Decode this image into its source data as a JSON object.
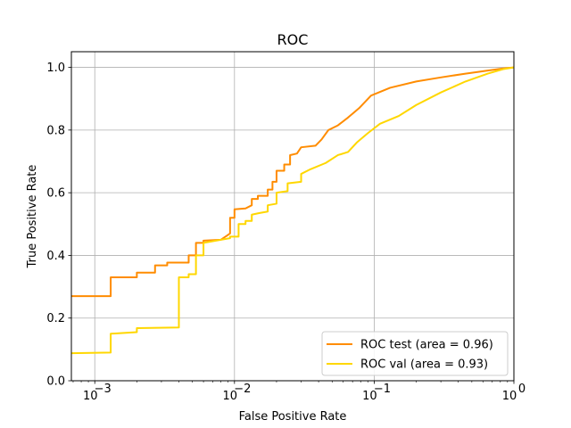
{
  "chart_data": {
    "type": "line",
    "title": "ROC",
    "xlabel": "False Positive Rate",
    "ylabel": "True Positive Rate",
    "xscale": "log",
    "xlim": [
      0.00068,
      1.0
    ],
    "ylim": [
      0.0,
      1.05
    ],
    "x_ticks": [
      {
        "value": 0.001,
        "base": "10",
        "exp": "−3"
      },
      {
        "value": 0.01,
        "base": "10",
        "exp": "−2"
      },
      {
        "value": 0.1,
        "base": "10",
        "exp": "−1"
      },
      {
        "value": 1.0,
        "base": "10",
        "exp": "0"
      }
    ],
    "y_ticks": [
      {
        "value": 0.0,
        "label": "0.0"
      },
      {
        "value": 0.2,
        "label": "0.2"
      },
      {
        "value": 0.4,
        "label": "0.4"
      },
      {
        "value": 0.6,
        "label": "0.6"
      },
      {
        "value": 0.8,
        "label": "0.8"
      },
      {
        "value": 1.0,
        "label": "1.0"
      }
    ],
    "grid": true,
    "legend_position": "bottom-right",
    "series": [
      {
        "name": "ROC test (area = 0.96)",
        "color": "#FF8C00",
        "points": [
          [
            0.00068,
            0.27
          ],
          [
            0.0013,
            0.27
          ],
          [
            0.0013,
            0.33
          ],
          [
            0.002,
            0.33
          ],
          [
            0.002,
            0.345
          ],
          [
            0.0027,
            0.345
          ],
          [
            0.0027,
            0.368
          ],
          [
            0.0033,
            0.368
          ],
          [
            0.0033,
            0.377
          ],
          [
            0.0047,
            0.377
          ],
          [
            0.0047,
            0.4
          ],
          [
            0.0053,
            0.4
          ],
          [
            0.0053,
            0.44
          ],
          [
            0.006,
            0.44
          ],
          [
            0.006,
            0.447
          ],
          [
            0.008,
            0.45
          ],
          [
            0.0093,
            0.47
          ],
          [
            0.0093,
            0.52
          ],
          [
            0.01,
            0.52
          ],
          [
            0.01,
            0.547
          ],
          [
            0.012,
            0.55
          ],
          [
            0.0133,
            0.56
          ],
          [
            0.0133,
            0.58
          ],
          [
            0.0147,
            0.58
          ],
          [
            0.0147,
            0.59
          ],
          [
            0.0173,
            0.59
          ],
          [
            0.0173,
            0.61
          ],
          [
            0.0187,
            0.61
          ],
          [
            0.0187,
            0.635
          ],
          [
            0.02,
            0.635
          ],
          [
            0.02,
            0.67
          ],
          [
            0.0227,
            0.67
          ],
          [
            0.0227,
            0.69
          ],
          [
            0.025,
            0.69
          ],
          [
            0.025,
            0.72
          ],
          [
            0.028,
            0.725
          ],
          [
            0.03,
            0.745
          ],
          [
            0.038,
            0.75
          ],
          [
            0.042,
            0.77
          ],
          [
            0.047,
            0.8
          ],
          [
            0.055,
            0.815
          ],
          [
            0.065,
            0.84
          ],
          [
            0.078,
            0.87
          ],
          [
            0.095,
            0.91
          ],
          [
            0.13,
            0.935
          ],
          [
            0.2,
            0.955
          ],
          [
            0.3,
            0.968
          ],
          [
            0.45,
            0.98
          ],
          [
            0.65,
            0.99
          ],
          [
            0.85,
            0.997
          ],
          [
            1.0,
            1.0
          ]
        ]
      },
      {
        "name": "ROC val (area = 0.93)",
        "color": "#FFD700",
        "points": [
          [
            0.00068,
            0.088
          ],
          [
            0.0013,
            0.09
          ],
          [
            0.0013,
            0.15
          ],
          [
            0.002,
            0.155
          ],
          [
            0.002,
            0.168
          ],
          [
            0.004,
            0.17
          ],
          [
            0.004,
            0.33
          ],
          [
            0.0047,
            0.33
          ],
          [
            0.0047,
            0.34
          ],
          [
            0.0053,
            0.34
          ],
          [
            0.0053,
            0.4
          ],
          [
            0.006,
            0.4
          ],
          [
            0.006,
            0.44
          ],
          [
            0.008,
            0.45
          ],
          [
            0.0093,
            0.455
          ],
          [
            0.0093,
            0.46
          ],
          [
            0.0107,
            0.46
          ],
          [
            0.0107,
            0.5
          ],
          [
            0.012,
            0.5
          ],
          [
            0.012,
            0.51
          ],
          [
            0.0133,
            0.51
          ],
          [
            0.0133,
            0.53
          ],
          [
            0.015,
            0.535
          ],
          [
            0.0173,
            0.54
          ],
          [
            0.0173,
            0.56
          ],
          [
            0.02,
            0.565
          ],
          [
            0.02,
            0.6
          ],
          [
            0.024,
            0.605
          ],
          [
            0.024,
            0.63
          ],
          [
            0.03,
            0.635
          ],
          [
            0.03,
            0.66
          ],
          [
            0.035,
            0.675
          ],
          [
            0.045,
            0.695
          ],
          [
            0.055,
            0.72
          ],
          [
            0.065,
            0.73
          ],
          [
            0.075,
            0.76
          ],
          [
            0.09,
            0.79
          ],
          [
            0.11,
            0.82
          ],
          [
            0.15,
            0.845
          ],
          [
            0.2,
            0.88
          ],
          [
            0.3,
            0.92
          ],
          [
            0.45,
            0.955
          ],
          [
            0.65,
            0.98
          ],
          [
            0.85,
            0.995
          ],
          [
            1.0,
            1.0
          ]
        ]
      }
    ]
  }
}
